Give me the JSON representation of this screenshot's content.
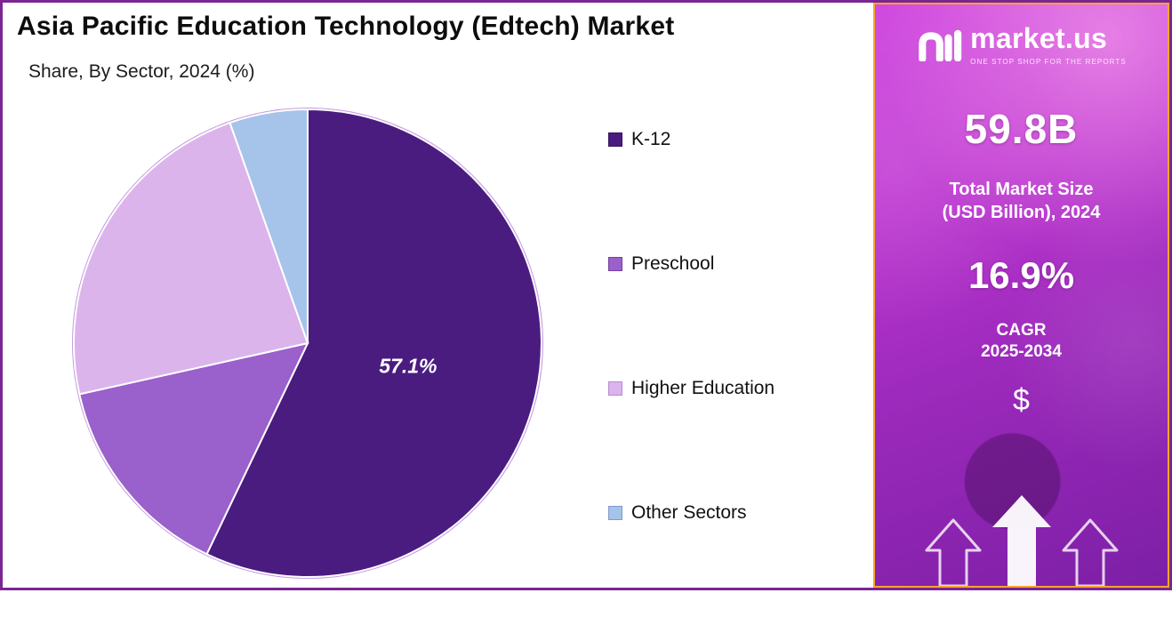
{
  "header": {
    "title": "Asia Pacific Education Technology (Edtech) Market",
    "subtitle": "Share, By Sector, 2024 (%)"
  },
  "chart_data": {
    "type": "pie",
    "title": "Asia Pacific Education Technology (Edtech) Market",
    "subtitle": "Share, By Sector, 2024 (%)",
    "unit": "%",
    "start_angle": "top",
    "direction": "clockwise",
    "legend_position": "right",
    "slices": [
      {
        "label": "K-12",
        "value": 57.1,
        "data_label": "57.1%",
        "value_is_estimate": false,
        "color": "#4a1c80",
        "swatch_border": "#33135e"
      },
      {
        "label": "Preschool",
        "value": 14.4,
        "data_label": "",
        "value_is_estimate": true,
        "color": "#9a60cb",
        "swatch_border": "#7440a0"
      },
      {
        "label": "Higher Education",
        "value": 23.1,
        "data_label": "",
        "value_is_estimate": true,
        "color": "#dcb4ec",
        "swatch_border": "#b48cd2"
      },
      {
        "label": "Other Sectors",
        "value": 5.4,
        "data_label": "",
        "value_is_estimate": true,
        "color": "#a6c3ea",
        "swatch_border": "#7e9cc9"
      }
    ]
  },
  "sidebar": {
    "logo": {
      "text": "market.us",
      "tagline": "ONE STOP SHOP FOR THE REPORTS"
    },
    "market_size": {
      "value": "59.8B",
      "label_line1": "Total Market Size",
      "label_line2": "(USD Billion), 2024"
    },
    "cagr": {
      "value": "16.9%",
      "label": "CAGR",
      "period": "2025-2034"
    },
    "dollar_symbol": "$",
    "colors": {
      "accent_border": "#f6a52c",
      "gradient_top": "#d14be0",
      "gradient_bottom": "#7c1fa6"
    }
  }
}
